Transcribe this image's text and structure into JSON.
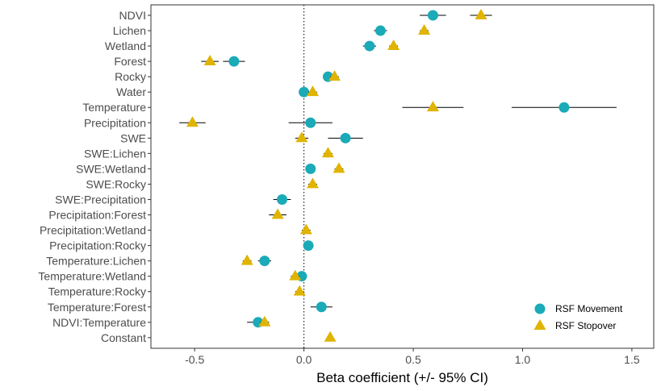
{
  "chart_data": {
    "type": "scatter",
    "title": "",
    "xlabel": "Beta coefficient (+/- 95% CI)",
    "ylabel": "",
    "xlim": [
      -0.7,
      1.6
    ],
    "x_ticks": [
      -0.5,
      0.0,
      0.5,
      1.0,
      1.5
    ],
    "x_tick_labels": [
      "-0.5",
      "0.0",
      "0.5",
      "1.0",
      "1.5"
    ],
    "reference_line": 0,
    "grid": false,
    "legend_position": "bottom-right",
    "categories": [
      "NDVI",
      "Lichen",
      "Wetland",
      "Forest",
      "Rocky",
      "Water",
      "Temperature",
      "Precipitation",
      "SWE",
      "SWE:Lichen",
      "SWE:Wetland",
      "SWE:Rocky",
      "SWE:Precipitation",
      "Precipitation:Forest",
      "Precipitation:Wetland",
      "Precipitation:Rocky",
      "Temperature:Lichen",
      "Temperature:Wetland",
      "Temperature:Rocky",
      "Temperature:Forest",
      "NDVI:Temperature",
      "Constant"
    ],
    "series": [
      {
        "name": "RSF Movement",
        "marker": "circle",
        "color": "#1aaab8",
        "points": [
          {
            "category": "NDVI",
            "value": 0.59,
            "lo": 0.53,
            "hi": 0.65
          },
          {
            "category": "Lichen",
            "value": 0.35,
            "lo": 0.32,
            "hi": 0.38
          },
          {
            "category": "Wetland",
            "value": 0.3,
            "lo": 0.27,
            "hi": 0.33
          },
          {
            "category": "Forest",
            "value": -0.32,
            "lo": -0.37,
            "hi": -0.27
          },
          {
            "category": "Rocky",
            "value": 0.11,
            "lo": 0.09,
            "hi": 0.13
          },
          {
            "category": "Water",
            "value": 0.0,
            "lo": -0.02,
            "hi": 0.02
          },
          {
            "category": "Temperature",
            "value": 1.19,
            "lo": 0.95,
            "hi": 1.43
          },
          {
            "category": "Precipitation",
            "value": 0.03,
            "lo": -0.07,
            "hi": 0.13
          },
          {
            "category": "SWE",
            "value": 0.19,
            "lo": 0.11,
            "hi": 0.27
          },
          {
            "category": "SWE:Wetland",
            "value": 0.03,
            "lo": 0.02,
            "hi": 0.04
          },
          {
            "category": "SWE:Precipitation",
            "value": -0.1,
            "lo": -0.14,
            "hi": -0.06
          },
          {
            "category": "Precipitation:Rocky",
            "value": 0.02,
            "lo": 0.01,
            "hi": 0.03
          },
          {
            "category": "Temperature:Lichen",
            "value": -0.18,
            "lo": -0.21,
            "hi": -0.15
          },
          {
            "category": "Temperature:Wetland",
            "value": -0.01,
            "lo": -0.03,
            "hi": 0.01
          },
          {
            "category": "Temperature:Forest",
            "value": 0.08,
            "lo": 0.03,
            "hi": 0.13
          },
          {
            "category": "NDVI:Temperature",
            "value": -0.21,
            "lo": -0.26,
            "hi": -0.16
          }
        ]
      },
      {
        "name": "RSF Stopover",
        "marker": "triangle",
        "color": "#e0b400",
        "points": [
          {
            "category": "NDVI",
            "value": 0.81,
            "lo": 0.76,
            "hi": 0.86
          },
          {
            "category": "Lichen",
            "value": 0.55,
            "lo": 0.53,
            "hi": 0.57
          },
          {
            "category": "Wetland",
            "value": 0.41,
            "lo": 0.39,
            "hi": 0.43
          },
          {
            "category": "Forest",
            "value": -0.43,
            "lo": -0.47,
            "hi": -0.39
          },
          {
            "category": "Rocky",
            "value": 0.14,
            "lo": 0.12,
            "hi": 0.16
          },
          {
            "category": "Water",
            "value": 0.04,
            "lo": 0.02,
            "hi": 0.06
          },
          {
            "category": "Temperature",
            "value": 0.59,
            "lo": 0.45,
            "hi": 0.73
          },
          {
            "category": "Precipitation",
            "value": -0.51,
            "lo": -0.57,
            "hi": -0.45
          },
          {
            "category": "SWE",
            "value": -0.01,
            "lo": -0.04,
            "hi": 0.02
          },
          {
            "category": "SWE:Lichen",
            "value": 0.11,
            "lo": 0.09,
            "hi": 0.13
          },
          {
            "category": "SWE:Wetland",
            "value": 0.16,
            "lo": 0.14,
            "hi": 0.18
          },
          {
            "category": "SWE:Rocky",
            "value": 0.04,
            "lo": 0.02,
            "hi": 0.06
          },
          {
            "category": "Precipitation:Forest",
            "value": -0.12,
            "lo": -0.16,
            "hi": -0.08
          },
          {
            "category": "Precipitation:Wetland",
            "value": 0.01,
            "lo": -0.01,
            "hi": 0.03
          },
          {
            "category": "Temperature:Lichen",
            "value": -0.26,
            "lo": -0.28,
            "hi": -0.24
          },
          {
            "category": "Temperature:Wetland",
            "value": -0.04,
            "lo": -0.06,
            "hi": -0.02
          },
          {
            "category": "Temperature:Rocky",
            "value": -0.02,
            "lo": -0.04,
            "hi": 0.0
          },
          {
            "category": "NDVI:Temperature",
            "value": -0.18,
            "lo": -0.2,
            "hi": -0.16
          },
          {
            "category": "Constant",
            "value": 0.12,
            "lo": 0.12,
            "hi": 0.12
          }
        ]
      }
    ]
  }
}
